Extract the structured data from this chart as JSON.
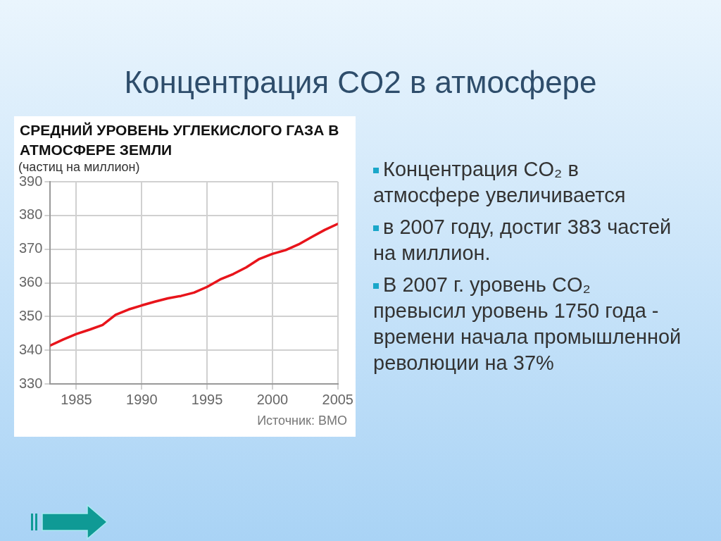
{
  "chart_data": {
    "type": "line",
    "title": "Концентрация CO2 в атмосфере",
    "subtitle": "СРЕДНИЙ УРОВЕНЬ УГЛЕКИСЛОГО ГАЗА В АТМОСФЕРЕ ЗЕМЛИ",
    "ylabel": "(частиц на миллион)",
    "x": [
      1983,
      1984,
      1985,
      1986,
      1987,
      1988,
      1989,
      1990,
      1991,
      1992,
      1993,
      1994,
      1995,
      1996,
      1997,
      1998,
      1999,
      2000,
      2001,
      2002,
      2003,
      2004,
      2005
    ],
    "series": [
      {
        "color": "#e8141b",
        "values": [
          341.4,
          343.2,
          344.8,
          346.1,
          347.5,
          350.5,
          352.1,
          353.3,
          354.4,
          355.4,
          356.1,
          357.1,
          358.8,
          361.0,
          362.6,
          364.6,
          367.1,
          368.6,
          369.7,
          371.4,
          373.6,
          375.7,
          377.5
        ]
      }
    ],
    "xlim": [
      1983,
      2005
    ],
    "xticks": [
      1985,
      1990,
      1995,
      2000,
      2005
    ],
    "ylim": [
      330,
      390
    ],
    "yticks": [
      330,
      340,
      350,
      360,
      370,
      380,
      390
    ],
    "grid": true,
    "marker": "none",
    "line_style": "solid",
    "annotations": [
      "Источник: ВМО",
      "Концентрация CO₂ в атмосфере  увеличивается",
      "в 2007 году, достиг 383 частей на миллион.",
      "В 2007 г. уровень CO₂ превысил уровень 1750 года - времени начала промышленной революции на 37%"
    ]
  }
}
